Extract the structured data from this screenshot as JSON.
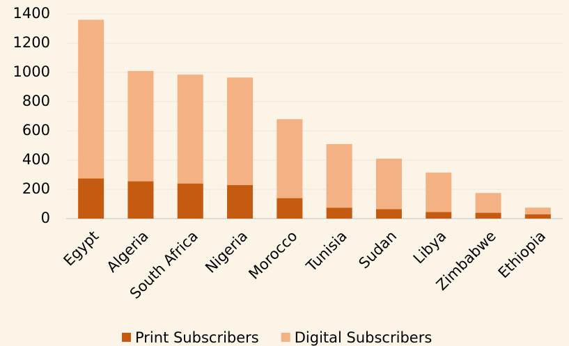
{
  "chart_data": {
    "type": "stacked_bar",
    "categories": [
      "Egypt",
      "Algeria",
      "South Africa",
      "Nigeria",
      "Morocco",
      "Tunisia",
      "Sudan",
      "Libya",
      "Zimbabwe",
      "Ethiopia"
    ],
    "series": [
      {
        "name": "Print Subscribers",
        "color": "#c55a11",
        "values": [
          275,
          255,
          240,
          230,
          140,
          75,
          65,
          45,
          40,
          30
        ]
      },
      {
        "name": "Digital Subscribers",
        "color": "#f4b183",
        "values": [
          1085,
          755,
          745,
          735,
          540,
          435,
          345,
          270,
          135,
          45
        ]
      }
    ],
    "ylim": [
      0,
      1400
    ],
    "yticks": [
      0,
      200,
      400,
      600,
      800,
      1000,
      1200,
      1400
    ],
    "grid": true,
    "legend": "bottom"
  }
}
